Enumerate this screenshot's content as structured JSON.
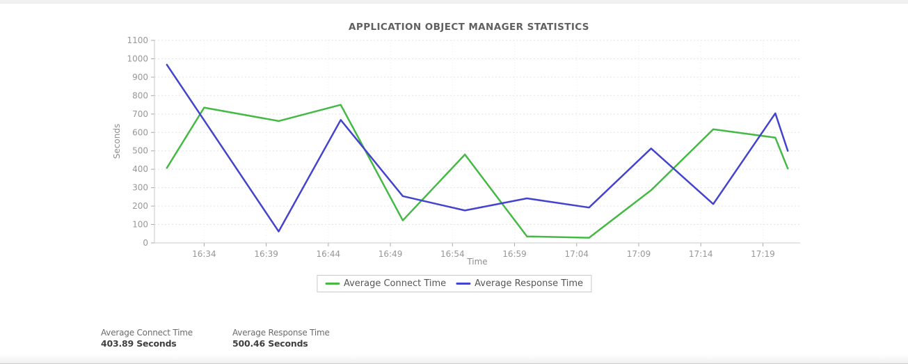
{
  "panel_title": "APPLICATION OBJECT MANAGER STATISTICS",
  "chart_data": {
    "type": "line",
    "title": "APPLICATION OBJECT MANAGER STATISTICS",
    "xlabel": "Time",
    "ylabel": "Seconds",
    "ylim": [
      0,
      1100
    ],
    "ytick_step": 100,
    "xlim": [
      "16:30",
      "17:22"
    ],
    "xticks": [
      "16:34",
      "16:39",
      "16:44",
      "16:49",
      "16:54",
      "16:59",
      "17:04",
      "17:09",
      "17:14",
      "17:19"
    ],
    "grid": true,
    "legend_position": "bottom",
    "series": [
      {
        "name": "Average Connect Time",
        "color": "#44b944",
        "points": [
          {
            "t": "16:31",
            "v": 407
          },
          {
            "t": "16:34",
            "v": 735
          },
          {
            "t": "16:40",
            "v": 662
          },
          {
            "t": "16:45",
            "v": 750
          },
          {
            "t": "16:50",
            "v": 122
          },
          {
            "t": "16:55",
            "v": 480
          },
          {
            "t": "17:00",
            "v": 35
          },
          {
            "t": "17:05",
            "v": 28
          },
          {
            "t": "17:10",
            "v": 286
          },
          {
            "t": "17:15",
            "v": 617
          },
          {
            "t": "17:20",
            "v": 572
          },
          {
            "t": "17:21",
            "v": 404
          }
        ]
      },
      {
        "name": "Average Response Time",
        "color": "#4343cd",
        "points": [
          {
            "t": "16:31",
            "v": 968
          },
          {
            "t": "16:40",
            "v": 62
          },
          {
            "t": "16:45",
            "v": 668
          },
          {
            "t": "16:50",
            "v": 254
          },
          {
            "t": "16:55",
            "v": 176
          },
          {
            "t": "17:00",
            "v": 242
          },
          {
            "t": "17:05",
            "v": 192
          },
          {
            "t": "17:10",
            "v": 513
          },
          {
            "t": "17:15",
            "v": 211
          },
          {
            "t": "17:20",
            "v": 704
          },
          {
            "t": "17:21",
            "v": 500
          }
        ]
      }
    ]
  },
  "legend": {
    "items": [
      {
        "label": "Average Connect Time",
        "color": "#44b944"
      },
      {
        "label": "Average Response Time",
        "color": "#4343cd"
      }
    ]
  },
  "summary": [
    {
      "label": "Average Connect Time",
      "value": "403.89 Seconds"
    },
    {
      "label": "Average Response Time",
      "value": "500.46 Seconds"
    }
  ],
  "colors": {
    "grid_h": "#e3e3e3",
    "grid_v": "#ececec",
    "axis": "#c8c8c8",
    "tick": "#a8a8a8"
  }
}
